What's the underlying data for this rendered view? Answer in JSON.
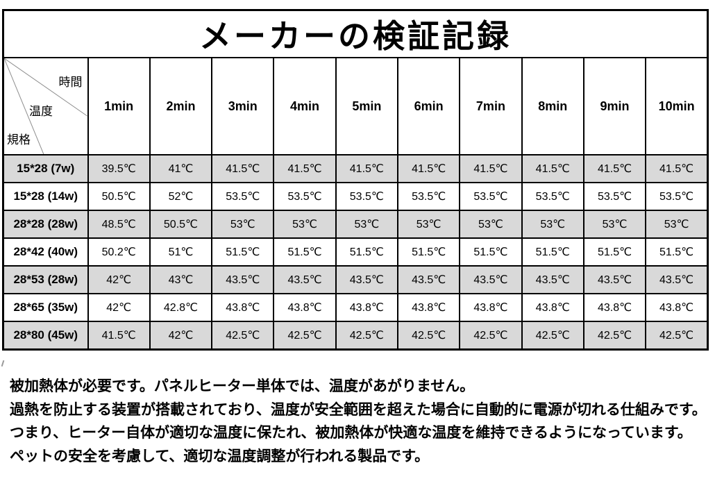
{
  "title": "メーカーの検証記録",
  "table": {
    "corner": {
      "time": "時間",
      "temp": "温度",
      "spec": "規格"
    },
    "columns": [
      "1min",
      "2min",
      "3min",
      "4min",
      "5min",
      "6min",
      "7min",
      "8min",
      "9min",
      "10min"
    ],
    "rows": [
      {
        "label": "15*28 (7w)",
        "values": [
          "39.5℃",
          "41℃",
          "41.5℃",
          "41.5℃",
          "41.5℃",
          "41.5℃",
          "41.5℃",
          "41.5℃",
          "41.5℃",
          "41.5℃"
        ]
      },
      {
        "label": "15*28 (14w)",
        "values": [
          "50.5℃",
          "52℃",
          "53.5℃",
          "53.5℃",
          "53.5℃",
          "53.5℃",
          "53.5℃",
          "53.5℃",
          "53.5℃",
          "53.5℃"
        ]
      },
      {
        "label": "28*28 (28w)",
        "values": [
          "48.5℃",
          "50.5℃",
          "53℃",
          "53℃",
          "53℃",
          "53℃",
          "53℃",
          "53℃",
          "53℃",
          "53℃"
        ]
      },
      {
        "label": "28*42 (40w)",
        "values": [
          "50.2℃",
          "51℃",
          "51.5℃",
          "51.5℃",
          "51.5℃",
          "51.5℃",
          "51.5℃",
          "51.5℃",
          "51.5℃",
          "51.5℃"
        ]
      },
      {
        "label": "28*53 (28w)",
        "values": [
          "42℃",
          "43℃",
          "43.5℃",
          "43.5℃",
          "43.5℃",
          "43.5℃",
          "43.5℃",
          "43.5℃",
          "43.5℃",
          "43.5℃"
        ]
      },
      {
        "label": "28*65 (35w)",
        "values": [
          "42℃",
          "42.8℃",
          "43.8℃",
          "43.8℃",
          "43.8℃",
          "43.8℃",
          "43.8℃",
          "43.8℃",
          "43.8℃",
          "43.8℃"
        ]
      },
      {
        "label": "28*80 (45w)",
        "values": [
          "41.5℃",
          "42℃",
          "42.5℃",
          "42.5℃",
          "42.5℃",
          "42.5℃",
          "42.5℃",
          "42.5℃",
          "42.5℃",
          "42.5℃"
        ]
      }
    ],
    "shade_color": "#d9d9d9",
    "border_color": "#000000"
  },
  "notes": [
    "被加熱体が必要です。パネルヒーター単体では、温度があがりません。",
    "過熱を防止する装置が搭載されており、温度が安全範囲を超えた場合に自動的に電源が切れる仕組みです。",
    "つまり、ヒーター自体が適切な温度に保たれ、被加熱体が快適な温度を維持できるようになっています。",
    "ペットの安全を考慮して、適切な温度調整が行われる製品です。"
  ]
}
